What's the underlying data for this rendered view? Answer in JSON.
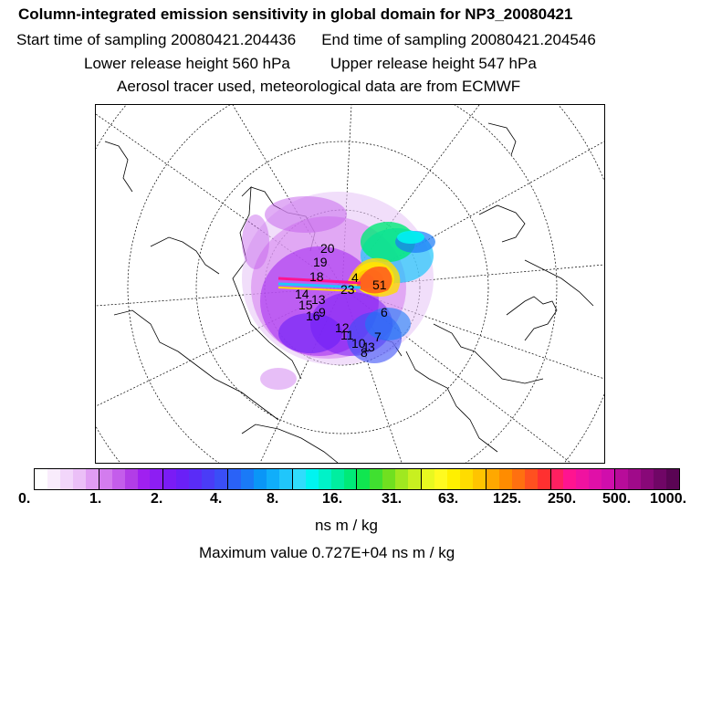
{
  "header": {
    "title": "Column-integrated emission sensitivity in global domain for NP3_20080421",
    "start_label": "Start time of sampling 20080421.204436",
    "end_label": "End time of sampling 20080421.204546",
    "lower_label": "Lower release height  560 hPa",
    "upper_label": "Upper release height  547 hPa",
    "tracer_label": "Aerosol tracer used, meteorological data are from ECMWF"
  },
  "map": {
    "projection": "polar stereographic",
    "trajectory_labels": [
      "20",
      "19",
      "18",
      "4",
      "51",
      "23",
      "14",
      "15",
      "16",
      "9",
      "12",
      "11",
      "10",
      "8",
      "7",
      "6",
      "13",
      "1",
      "3"
    ]
  },
  "colorbar": {
    "tick_labels": [
      "0.",
      "1.",
      "2.",
      "4.",
      "8.",
      "16.",
      "31.",
      "63.",
      "125.",
      "250.",
      "500.",
      "1000."
    ],
    "colors": [
      "#ffffff",
      "#f9ecfc",
      "#f2d6fa",
      "#ebbff7",
      "#e09df3",
      "#d37cee",
      "#c45deb",
      "#b23de7",
      "#a020f0",
      "#8d1ef3",
      "#7a1cf5",
      "#6a20f7",
      "#5a2cf7",
      "#4a3cf7",
      "#3a4ef7",
      "#2a62f7",
      "#1a7af7",
      "#0a96f7",
      "#10aefa",
      "#20c6fb",
      "#30ddfc",
      "#00f4f0",
      "#00f2c8",
      "#00eea0",
      "#00ea78",
      "#10e650",
      "#40e030",
      "#70e020",
      "#a0e820",
      "#c8f020",
      "#e8f820",
      "#fffa20",
      "#fff000",
      "#ffdc00",
      "#ffc400",
      "#ffa800",
      "#ff8c00",
      "#ff7010",
      "#ff5020",
      "#ff3030",
      "#ff2060",
      "#ff1490",
      "#f012a0",
      "#e010a8",
      "#d00eac",
      "#b80c9a",
      "#a00a8a",
      "#880878",
      "#700666",
      "#5a0454"
    ],
    "units": "ns m / kg",
    "max_value_label": "Maximum value  0.727E+04 ns m / kg"
  }
}
